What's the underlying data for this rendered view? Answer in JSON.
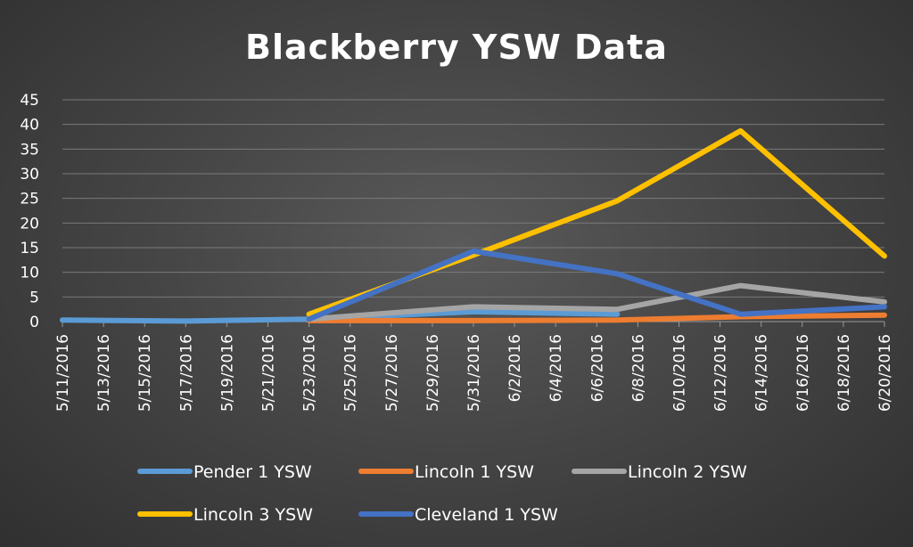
{
  "chart_data": {
    "type": "line",
    "title": "Blackberry YSW Data",
    "xlabel": "",
    "ylabel": "",
    "ylim": [
      0,
      45
    ],
    "yticks": [
      "0",
      "5",
      "10",
      "15",
      "20",
      "25",
      "30",
      "35",
      "40",
      "45"
    ],
    "xticks": [
      "5/11/2016",
      "5/13/2016",
      "5/15/2016",
      "5/17/2016",
      "5/19/2016",
      "5/21/2016",
      "5/23/2016",
      "5/25/2016",
      "5/27/2016",
      "5/29/2016",
      "5/31/2016",
      "6/2/2016",
      "6/4/2016",
      "6/6/2016",
      "6/8/2016",
      "6/10/2016",
      "6/12/2016",
      "6/14/2016",
      "6/16/2016",
      "6/18/2016",
      "6/20/2016"
    ],
    "xlim": [
      "5/11/2016",
      "6/20/2016"
    ],
    "grid": true,
    "legend_position": "bottom",
    "series": [
      {
        "name": "Pender 1 YSW",
        "color": "#5b9bd5",
        "points": [
          [
            "5/11/2016",
            0.3
          ],
          [
            "5/17/2016",
            0.1
          ],
          [
            "5/23/2016",
            0.5
          ],
          [
            "5/31/2016",
            2
          ],
          [
            "6/7/2016",
            1.5
          ]
        ]
      },
      {
        "name": "Lincoln 1 YSW",
        "color": "#ed7d31",
        "points": [
          [
            "5/23/2016",
            0.2
          ],
          [
            "5/31/2016",
            0.2
          ],
          [
            "6/7/2016",
            0.3
          ],
          [
            "6/13/2016",
            1
          ],
          [
            "6/20/2016",
            1.3
          ]
        ]
      },
      {
        "name": "Lincoln 2 YSW",
        "color": "#a5a5a5",
        "points": [
          [
            "5/23/2016",
            0.5
          ],
          [
            "5/31/2016",
            3
          ],
          [
            "6/7/2016",
            2.5
          ],
          [
            "6/13/2016",
            7.3
          ],
          [
            "6/20/2016",
            4
          ]
        ]
      },
      {
        "name": "Lincoln 3 YSW",
        "color": "#ffc000",
        "points": [
          [
            "5/23/2016",
            1.5
          ],
          [
            "5/31/2016",
            13.5
          ],
          [
            "6/7/2016",
            24.5
          ],
          [
            "6/13/2016",
            38.7
          ],
          [
            "6/20/2016",
            13.3
          ]
        ]
      },
      {
        "name": "Cleveland 1 YSW",
        "color": "#4472c4",
        "points": [
          [
            "5/23/2016",
            0.5
          ],
          [
            "5/31/2016",
            14.3
          ],
          [
            "6/7/2016",
            9.7
          ],
          [
            "6/13/2016",
            1.5
          ],
          [
            "6/20/2016",
            3
          ]
        ]
      }
    ]
  }
}
